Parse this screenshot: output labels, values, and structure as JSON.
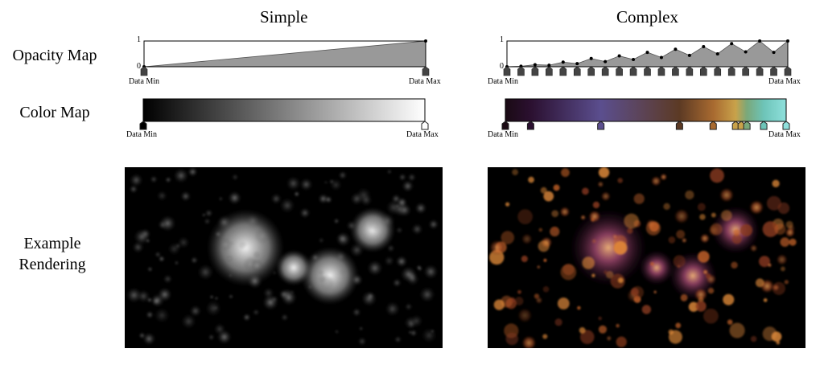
{
  "columns": {
    "simple": "Simple",
    "complex": "Complex"
  },
  "rows": {
    "opacity_map": "Opacity Map",
    "color_map": "Color Map",
    "example_rendering_line1": "Example",
    "example_rendering_line2": "Rendering"
  },
  "axis": {
    "opacity_top": "1",
    "opacity_bottom": "0",
    "data_min": "Data Min",
    "data_max": "Data Max"
  },
  "simple": {
    "opacity_points": [
      [
        0,
        0
      ],
      [
        1,
        1
      ]
    ],
    "color_stops": [
      {
        "pos": 0.0,
        "color": "#000000"
      },
      {
        "pos": 1.0,
        "color": "#ffffff"
      }
    ]
  },
  "complex": {
    "opacity_points": [
      [
        0.0,
        0.0
      ],
      [
        0.05,
        0.02
      ],
      [
        0.1,
        0.08
      ],
      [
        0.15,
        0.06
      ],
      [
        0.2,
        0.18
      ],
      [
        0.25,
        0.12
      ],
      [
        0.3,
        0.32
      ],
      [
        0.35,
        0.2
      ],
      [
        0.4,
        0.42
      ],
      [
        0.45,
        0.28
      ],
      [
        0.5,
        0.56
      ],
      [
        0.55,
        0.36
      ],
      [
        0.6,
        0.68
      ],
      [
        0.65,
        0.44
      ],
      [
        0.7,
        0.78
      ],
      [
        0.75,
        0.5
      ],
      [
        0.8,
        0.9
      ],
      [
        0.85,
        0.58
      ],
      [
        0.9,
        1.0
      ],
      [
        0.95,
        0.56
      ],
      [
        1.0,
        1.0
      ]
    ],
    "color_stops": [
      {
        "pos": 0.0,
        "color": "#1a0a14"
      },
      {
        "pos": 0.09,
        "color": "#2b1030"
      },
      {
        "pos": 0.34,
        "color": "#5b4e8e"
      },
      {
        "pos": 0.62,
        "color": "#5c3a24"
      },
      {
        "pos": 0.74,
        "color": "#a86a30"
      },
      {
        "pos": 0.82,
        "color": "#c9a24a"
      },
      {
        "pos": 0.86,
        "color": "#7aa87a"
      },
      {
        "pos": 0.92,
        "color": "#6dc4b8"
      },
      {
        "pos": 1.0,
        "color": "#8fe0dc"
      }
    ],
    "marker_positions": [
      0.0,
      0.09,
      0.34,
      0.62,
      0.74,
      0.82,
      0.84,
      0.86,
      0.92,
      1.0
    ]
  }
}
